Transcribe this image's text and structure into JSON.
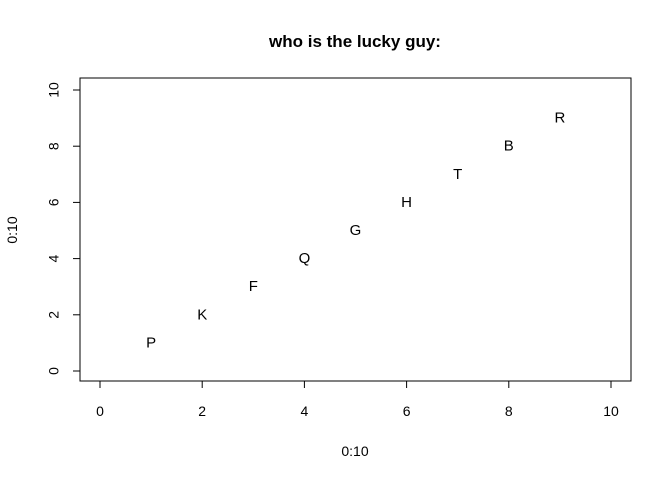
{
  "chart_data": {
    "type": "scatter",
    "title": "who is the lucky guy:",
    "xlabel": "0:10",
    "ylabel": "0:10",
    "xlim": [
      0,
      10
    ],
    "ylim": [
      0,
      10
    ],
    "x_ticks": [
      0,
      2,
      4,
      6,
      8,
      10
    ],
    "y_ticks": [
      0,
      2,
      4,
      6,
      8,
      10
    ],
    "grid": false,
    "points": [
      {
        "x": 1,
        "y": 1,
        "label": "P"
      },
      {
        "x": 2,
        "y": 2,
        "label": "K"
      },
      {
        "x": 3,
        "y": 3,
        "label": "F"
      },
      {
        "x": 4,
        "y": 4,
        "label": "Q"
      },
      {
        "x": 5,
        "y": 5,
        "label": "G"
      },
      {
        "x": 6,
        "y": 6,
        "label": "H"
      },
      {
        "x": 7,
        "y": 7,
        "label": "T"
      },
      {
        "x": 8,
        "y": 8,
        "label": "B"
      },
      {
        "x": 9,
        "y": 9,
        "label": "R"
      }
    ]
  }
}
